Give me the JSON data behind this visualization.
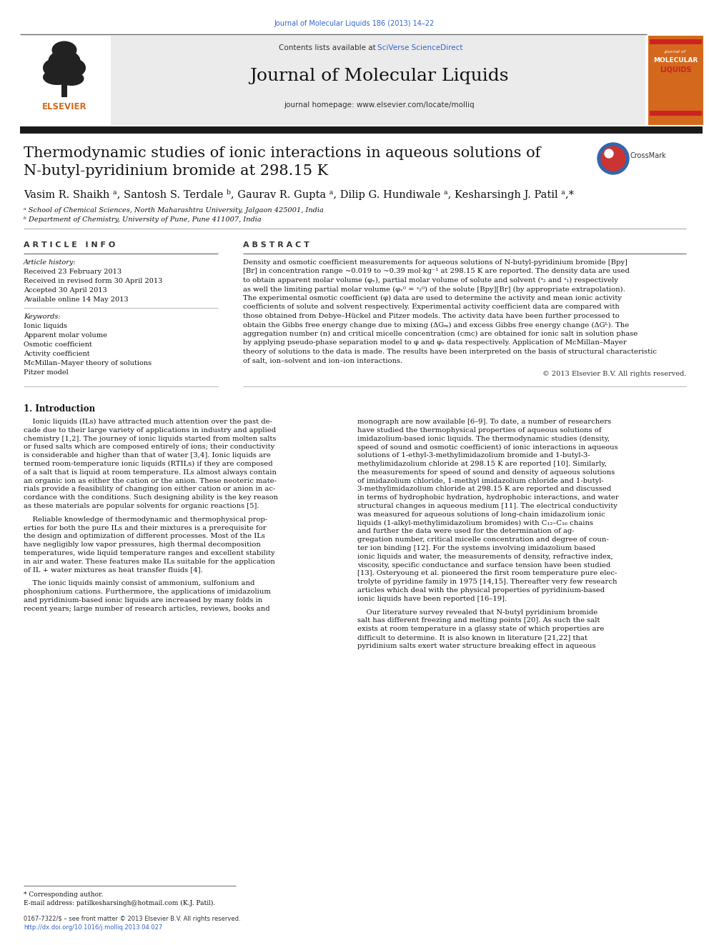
{
  "page_width": 9.92,
  "page_height": 13.23,
  "dpi": 100,
  "bg_color": "#ffffff",
  "top_citation": "Journal of Molecular Liquids 186 (2013) 14–22",
  "blue_link_color": "#3366cc",
  "orange_color": "#d4691e",
  "dark_bar_color": "#1a1a1a",
  "gray_header_color": "#ebebeb",
  "separator_color": "#888888",
  "text_color": "#111111",
  "journal_name": "Journal of Molecular Liquids",
  "journal_url": "journal homepage: www.elsevier.com/locate/molliq",
  "contents_text": "Contents lists available at ",
  "sciverse_text": "SciVerse ScienceDirect",
  "article_title_line1": "Thermodynamic studies of ionic interactions in aqueous solutions of",
  "article_title_line2": "N-butyl-pyridinium bromide at 298.15 K",
  "authors_line": "Vasim R. Shaikh ᵃ, Santosh S. Terdale ᵇ, Gaurav R. Gupta ᵃ, Dilip G. Hundiwale ᵃ, Kesharsingh J. Patil ᵃ,*",
  "affil_a": "ᵃ School of Chemical Sciences, North Maharashtra University, Jalgaon 425001, India",
  "affil_b": "ᵇ Department of Chemistry, University of Pune, Pune 411007, India",
  "ai_header": "A R T I C L E   I N F O",
  "abs_header": "A B S T R A C T",
  "art_history_label": "Article history:",
  "received": "Received 23 February 2013",
  "received_rev": "Received in revised form 30 April 2013",
  "accepted": "Accepted 30 April 2013",
  "available": "Available online 14 May 2013",
  "keywords_label": "Keywords:",
  "keywords": [
    "Ionic liquids",
    "Apparent molar volume",
    "Osmotic coefficient",
    "Activity coefficient",
    "McMillan–Mayer theory of solutions",
    "Pitzer model"
  ],
  "abstract_lines": [
    "Density and osmotic coefficient measurements for aqueous solutions of N-butyl-pyridinium bromide [Bpy]",
    "[Br] in concentration range ~0.019 to ~0.39 mol·kg⁻¹ at 298.15 K are reported. The density data are used",
    "to obtain apparent molar volume (φᵥ), partial molar volume of solute and solvent (ᵌ₂ and ᵌ₁) respectively",
    "as well the limiting partial molar volume (φᵥ⁰ = ᵌ₂⁰) of the solute [Bpy][Br] (by appropriate extrapolation).",
    "The experimental osmotic coefficient (φ) data are used to determine the activity and mean ionic activity",
    "coefficients of solute and solvent respectively. Experimental activity coefficient data are compared with",
    "those obtained from Debye–Hückel and Pitzer models. The activity data have been further processed to",
    "obtain the Gibbs free energy change due to mixing (ΔGₘ) and excess Gibbs free energy change (ΔGᴸ). The",
    "aggregation number (n) and critical micelle concentration (cmc) are obtained for ionic salt in solution phase",
    "by applying pseudo-phase separation model to φ and φᵥ data respectively. Application of McMillan–Mayer",
    "theory of solutions to the data is made. The results have been interpreted on the basis of structural characteristic",
    "of salt, ion–solvent and ion–ion interactions."
  ],
  "copyright": "© 2013 Elsevier B.V. All rights reserved.",
  "section1_header": "1. Introduction",
  "col1_lines": [
    "    Ionic liquids (ILs) have attracted much attention over the past de-",
    "cade due to their large variety of applications in industry and applied",
    "chemistry [1,2]. The journey of ionic liquids started from molten salts",
    "or fused salts which are composed entirely of ions; their conductivity",
    "is considerable and higher than that of water [3,4]. Ionic liquids are",
    "termed room-temperature ionic liquids (RTILs) if they are composed",
    "of a salt that is liquid at room temperature. ILs almost always contain",
    "an organic ion as either the cation or the anion. These neoteric mate-",
    "rials provide a feasibility of changing ion either cation or anion in ac-",
    "cordance with the conditions. Such designing ability is the key reason",
    "as these materials are popular solvents for organic reactions [5]."
  ],
  "col1_p2_lines": [
    "    Reliable knowledge of thermodynamic and thermophysical prop-",
    "erties for both the pure ILs and their mixtures is a prerequisite for",
    "the design and optimization of different processes. Most of the ILs",
    "have negligibly low vapor pressures, high thermal decomposition",
    "temperatures, wide liquid temperature ranges and excellent stability",
    "in air and water. These features make ILs suitable for the application",
    "of IL + water mixtures as heat transfer fluids [4]."
  ],
  "col1_p3_lines": [
    "    The ionic liquids mainly consist of ammonium, sulfonium and",
    "phosphonium cations. Furthermore, the applications of imidazolium",
    "and pyridinium-based ionic liquids are increased by many folds in",
    "recent years; large number of research articles, reviews, books and"
  ],
  "col2_lines": [
    "monograph are now available [6–9]. To date, a number of researchers",
    "have studied the thermophysical properties of aqueous solutions of",
    "imidazolium-based ionic liquids. The thermodynamic studies (density,",
    "speed of sound and osmotic coefficient) of ionic interactions in aqueous",
    "solutions of 1-ethyl-3-methylimidazolium bromide and 1-butyl-3-",
    "methylimidazolium chloride at 298.15 K are reported [10]. Similarly,",
    "the measurements for speed of sound and density of aqueous solutions",
    "of imidazolium chloride, 1-methyl imidazolium chloride and 1-butyl-",
    "3-methylimidazolium chloride at 298.15 K are reported and discussed",
    "in terms of hydrophobic hydration, hydrophobic interactions, and water",
    "structural changes in aqueous medium [11]. The electrical conductivity",
    "was measured for aqueous solutions of long-chain imidazolium ionic",
    "liquids (1-alkyl-methylimidazolium bromides) with C₁₂–C₁₆ chains",
    "and further the data were used for the determination of ag-",
    "gregation number, critical micelle concentration and degree of coun-",
    "ter ion binding [12]. For the systems involving imidazolium based",
    "ionic liquids and water, the measurements of density, refractive index,",
    "viscosity, specific conductance and surface tension have been studied",
    "[13]. Osteryoung et al. pioneered the first room temperature pure elec-",
    "trolyte of pyridine family in 1975 [14,15]. Thereafter very few research",
    "articles which deal with the physical properties of pyridinium-based",
    "ionic liquids have been reported [16–19]."
  ],
  "col2_p2_lines": [
    "    Our literature survey revealed that N-butyl pyridinium bromide",
    "salt has different freezing and melting points [20]. As such the salt",
    "exists at room temperature in a glassy state of which properties are",
    "difficult to determine. It is also known in literature [21,22] that",
    "pyridinium salts exert water structure breaking effect in aqueous"
  ],
  "footnote_star": "* Corresponding author.",
  "footnote_email": "E-mail address: patilkesharsingh@hotmail.com (K.J. Patil).",
  "footer_line1": "0167-7322/$ – see front matter © 2013 Elsevier B.V. All rights reserved.",
  "footer_line2": "http://dx.doi.org/10.1016/j.molliq.2013.04.027"
}
